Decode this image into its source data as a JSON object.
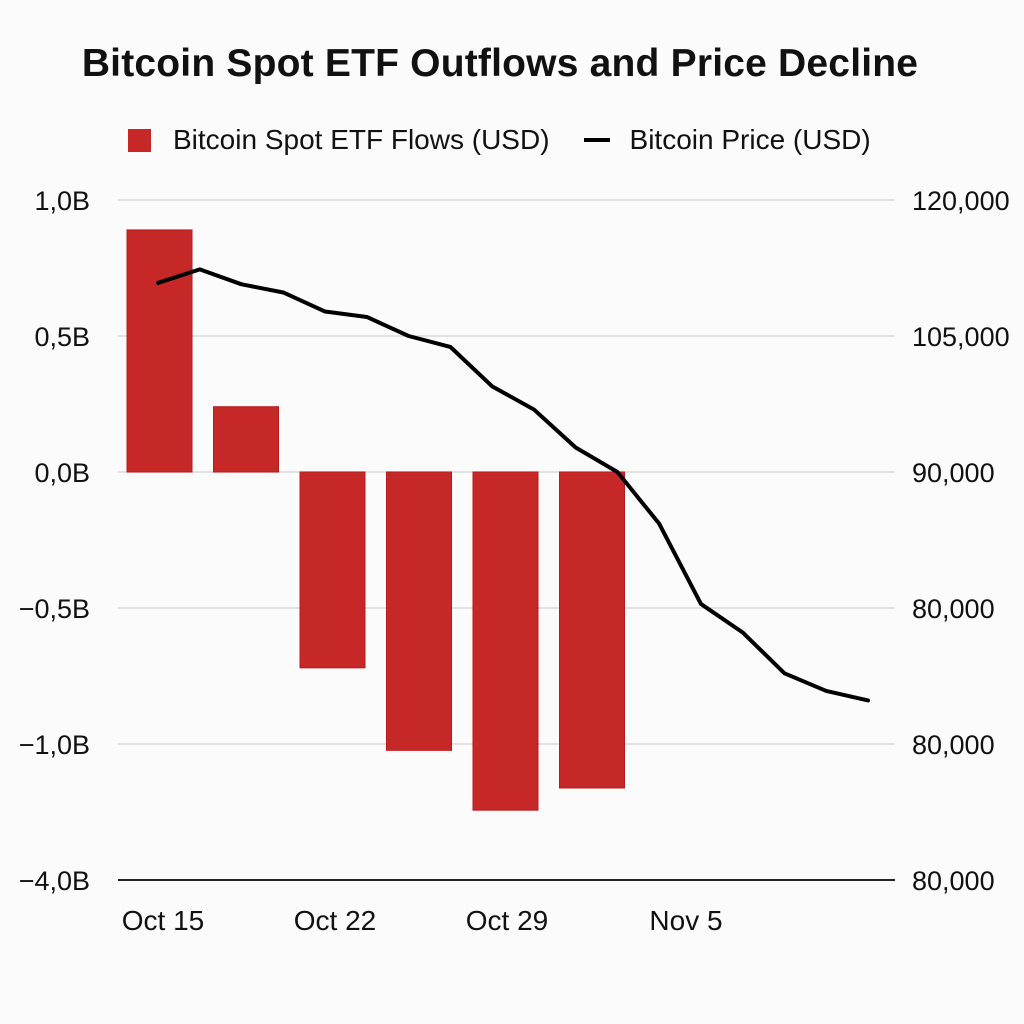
{
  "chart_data": {
    "type": "bar+line",
    "title": "Bitcoin Spot ETF Outflows and Price Decline",
    "legend": {
      "placement": "top-center",
      "entries": [
        {
          "label": "Bitcoin Spot ETF Flows (USD)",
          "kind": "bar",
          "color": "#c62828"
        },
        {
          "label": "Bitcoin Price (USD)",
          "kind": "line",
          "color": "#000000"
        }
      ]
    },
    "grid": true,
    "left_axis": {
      "label": "",
      "tick_labels": [
        "1,0B",
        "0,5B",
        "0,0B",
        "−0,5B",
        "−1,0B",
        "−4,0B"
      ],
      "tick_values_billion": [
        1.0,
        0.5,
        0.0,
        -0.5,
        -1.0,
        -4.0
      ]
    },
    "right_axis": {
      "label": "",
      "tick_labels": [
        "120,000",
        "105,000",
        "90,000",
        "80,000",
        "80,000",
        "80,000"
      ]
    },
    "x_axis": {
      "tick_labels": [
        "Oct 15",
        "Oct 22",
        "Oct 29",
        "Nov 5"
      ]
    },
    "bars": {
      "name": "Bitcoin Spot ETF Flows (USD)",
      "unit": "billion USD",
      "values": [
        0.89,
        0.24,
        -0.72,
        -1.14,
        -2.46,
        -1.97
      ]
    },
    "price_line": {
      "name": "Bitcoin Price (USD)",
      "note": "values expressed as position on the right-axis tick scale (0 = 120,000 tick, 1 = 105,000, 2 = 90,000, 3 = 80,000, 4 = 80,000, 5 = 80,000)",
      "axis_position": [
        0.61,
        0.51,
        0.62,
        0.68,
        0.82,
        0.86,
        1.0,
        1.08,
        1.37,
        1.54,
        1.82,
        2.0,
        2.38,
        2.97,
        3.18,
        3.48,
        3.61,
        3.68
      ],
      "approx_usd_where_readable": [
        110850,
        112350,
        110700,
        109800,
        107700,
        107100,
        105000,
        103800,
        98550,
        95900,
        92700,
        90000,
        86200,
        80300,
        null,
        null,
        null,
        null
      ]
    }
  }
}
